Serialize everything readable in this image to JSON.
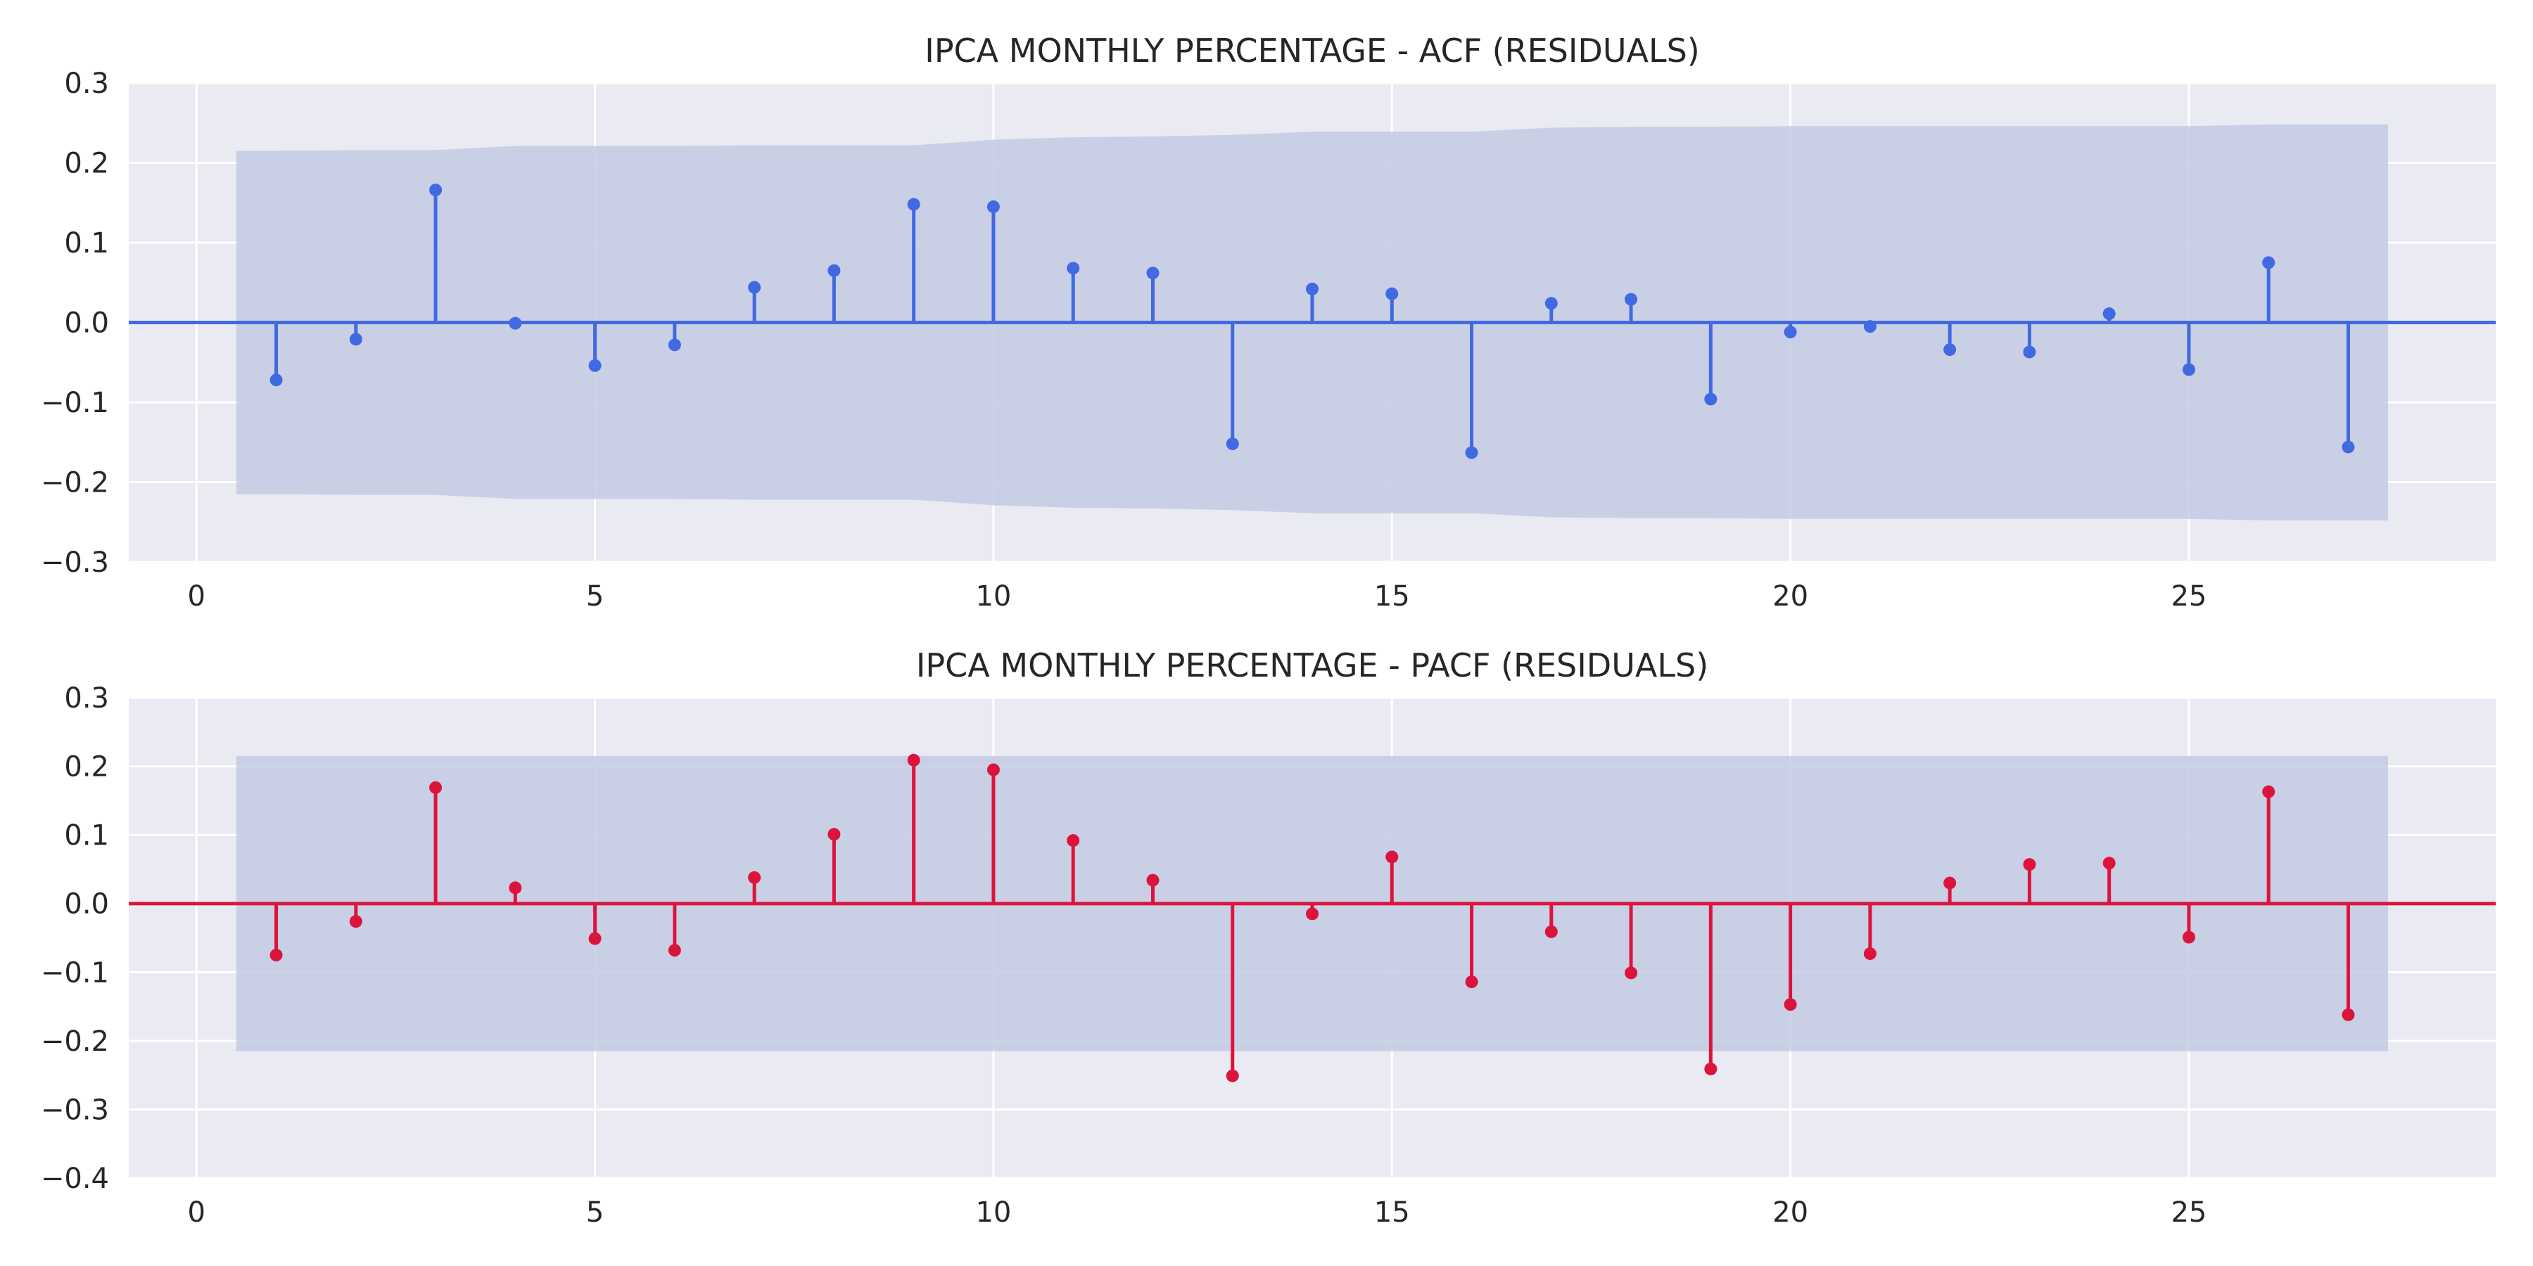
{
  "chart_data": [
    {
      "type": "stem",
      "title": "IPCA MONTHLY PERCENTAGE - ACF (RESIDUALS)",
      "xlabel": "",
      "ylabel": "",
      "xlim": [
        -0.85,
        28.85
      ],
      "ylim": [
        -0.3,
        0.3
      ],
      "xticks": [
        0,
        5,
        10,
        15,
        20,
        25
      ],
      "yticks": [
        -0.3,
        -0.2,
        -0.1,
        0.0,
        0.1,
        0.2,
        0.3
      ],
      "grid": true,
      "color": "#4169E1",
      "band_color": "#C3CAE3",
      "lags": [
        1,
        2,
        3,
        4,
        5,
        6,
        7,
        8,
        9,
        10,
        11,
        12,
        13,
        14,
        15,
        16,
        17,
        18,
        19,
        20,
        21,
        22,
        23,
        24,
        25,
        26,
        27
      ],
      "values": [
        -0.072,
        -0.021,
        0.166,
        -0.001,
        -0.054,
        -0.028,
        0.044,
        0.065,
        0.148,
        0.145,
        0.068,
        0.062,
        -0.152,
        0.042,
        0.036,
        -0.163,
        0.024,
        0.029,
        -0.096,
        -0.012,
        -0.005,
        -0.034,
        -0.037,
        0.011,
        -0.059,
        0.075,
        -0.156
      ],
      "confint_x": [
        0.5,
        1,
        2,
        3,
        4,
        5,
        6,
        7,
        8,
        9,
        10,
        11,
        12,
        13,
        14,
        15,
        16,
        17,
        18,
        19,
        20,
        21,
        22,
        23,
        24,
        25,
        26,
        27,
        27.5
      ],
      "confint_upper": [
        0.215,
        0.215,
        0.216,
        0.216,
        0.221,
        0.221,
        0.221,
        0.222,
        0.222,
        0.222,
        0.229,
        0.232,
        0.233,
        0.235,
        0.239,
        0.239,
        0.239,
        0.244,
        0.245,
        0.245,
        0.246,
        0.246,
        0.246,
        0.246,
        0.246,
        0.246,
        0.248,
        0.248,
        0.248
      ]
    },
    {
      "type": "stem",
      "title": "IPCA MONTHLY PERCENTAGE - PACF (RESIDUALS)",
      "xlabel": "",
      "ylabel": "",
      "xlim": [
        -0.85,
        28.85
      ],
      "ylim": [
        -0.4,
        0.3
      ],
      "xticks": [
        0,
        5,
        10,
        15,
        20,
        25
      ],
      "yticks": [
        -0.4,
        -0.3,
        -0.2,
        -0.1,
        0.0,
        0.1,
        0.2,
        0.3
      ],
      "grid": true,
      "color": "#DC143C",
      "band_color": "#C3CAE3",
      "lags": [
        1,
        2,
        3,
        4,
        5,
        6,
        7,
        8,
        9,
        10,
        11,
        12,
        13,
        14,
        15,
        16,
        17,
        18,
        19,
        20,
        21,
        22,
        23,
        24,
        25,
        26,
        27
      ],
      "values": [
        -0.075,
        -0.026,
        0.169,
        0.023,
        -0.051,
        -0.068,
        0.038,
        0.101,
        0.209,
        0.195,
        0.092,
        0.034,
        -0.251,
        -0.015,
        0.068,
        -0.114,
        -0.041,
        -0.101,
        -0.241,
        -0.147,
        -0.073,
        0.03,
        0.057,
        0.059,
        -0.049,
        0.163,
        -0.162
      ],
      "confint_x": [
        0.5,
        27.5
      ],
      "confint_upper": [
        0.215,
        0.215
      ]
    }
  ]
}
